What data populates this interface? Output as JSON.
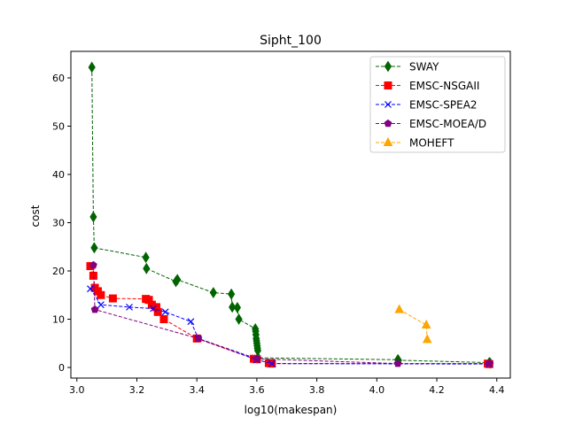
{
  "chart_data": {
    "type": "line",
    "title": "Sipht_100",
    "xlabel": "log10(makespan)",
    "ylabel": "cost",
    "xlim": [
      2.98,
      4.445
    ],
    "ylim": [
      -2.2,
      65.5
    ],
    "xticks": [
      3.0,
      3.2,
      3.4,
      3.6,
      3.8,
      4.0,
      4.2,
      4.4
    ],
    "xtick_labels": [
      "3.0",
      "3.2",
      "3.4",
      "3.6",
      "3.8",
      "4.0",
      "4.2",
      "4.4"
    ],
    "yticks": [
      0,
      10,
      20,
      30,
      40,
      50,
      60
    ],
    "ytick_labels": [
      "0",
      "10",
      "20",
      "30",
      "40",
      "50",
      "60"
    ],
    "grid": false,
    "legend_position": "top-right",
    "series": [
      {
        "name": "SWAY",
        "color": "#006400",
        "marker": "diamond",
        "x": [
          3.05,
          3.055,
          3.058,
          3.23,
          3.232,
          3.33,
          3.335,
          3.455,
          3.515,
          3.518,
          3.535,
          3.54,
          3.595,
          3.596,
          3.597,
          3.598,
          3.599,
          3.6,
          3.601,
          3.602,
          3.603,
          3.604,
          4.07,
          4.072,
          4.375,
          4.378
        ],
        "y": [
          62.2,
          31.2,
          24.8,
          22.8,
          20.5,
          17.8,
          18.2,
          15.5,
          15.2,
          12.5,
          12.4,
          10.0,
          8.0,
          7.5,
          6.8,
          6.0,
          5.5,
          5.0,
          4.5,
          4.0,
          3.5,
          2.0,
          1.6,
          1.5,
          1.0,
          0.9
        ]
      },
      {
        "name": "EMSC-NSGAII",
        "color": "#ff0000",
        "marker": "square",
        "x": [
          3.045,
          3.055,
          3.06,
          3.07,
          3.08,
          3.12,
          3.23,
          3.24,
          3.25,
          3.265,
          3.27,
          3.29,
          3.4,
          3.59,
          3.6,
          3.64,
          3.65,
          4.37,
          4.375
        ],
        "y": [
          21.0,
          19.0,
          16.5,
          15.8,
          15.0,
          14.3,
          14.2,
          14.0,
          13.0,
          12.5,
          11.5,
          10.0,
          6.0,
          1.8,
          1.7,
          0.9,
          0.8,
          0.8,
          0.7
        ]
      },
      {
        "name": "EMSC-SPEA2",
        "color": "#0000ff",
        "marker": "x",
        "x": [
          3.045,
          3.08,
          3.175,
          3.255,
          3.295,
          3.38,
          3.405,
          3.6,
          3.65,
          4.375
        ],
        "y": [
          16.3,
          13.0,
          12.5,
          12.2,
          11.5,
          9.5,
          6.0,
          1.6,
          0.8,
          0.7
        ]
      },
      {
        "name": "EMSC-MOEA/D",
        "color": "#800080",
        "marker": "pentagon",
        "x": [
          3.055,
          3.06,
          3.405,
          3.6,
          4.07,
          4.375
        ],
        "y": [
          21.2,
          12.0,
          6.0,
          1.8,
          0.8,
          0.8
        ]
      },
      {
        "name": "MOHEFT",
        "color": "#ffa500",
        "marker": "triangle",
        "x": [
          4.075,
          4.165,
          4.168
        ],
        "y": [
          12.0,
          8.8,
          5.8
        ]
      }
    ]
  }
}
